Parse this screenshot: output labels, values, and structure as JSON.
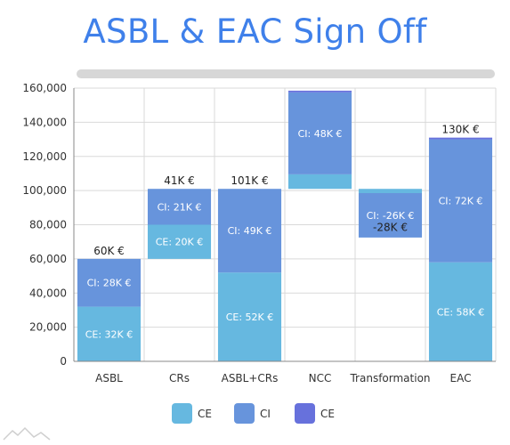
{
  "chart_data": {
    "type": "bar",
    "subtype": "stacked-waterfall",
    "title": "ASBL & EAC Sign Off",
    "xlabel": "",
    "ylabel": "",
    "ylim": [
      0,
      160000
    ],
    "yticks": [
      0,
      20000,
      40000,
      60000,
      80000,
      100000,
      120000,
      140000,
      160000
    ],
    "ytick_labels": [
      "0",
      "20,000",
      "40,000",
      "60,000",
      "80,000",
      "100,000",
      "120,000",
      "140,000",
      "160,000"
    ],
    "grid": true,
    "legend_position": "bottom",
    "categories": [
      "ASBL",
      "CRs",
      "ASBL+CRs",
      "NCC",
      "Transformation",
      "EAC"
    ],
    "bars": [
      {
        "category": "ASBL",
        "segments": [
          {
            "series": 0,
            "from": 0,
            "to": 32000,
            "label": "CE: 32K €"
          },
          {
            "series": 1,
            "from": 32000,
            "to": 60000,
            "label": "CI: 28K €"
          }
        ],
        "total_label": "60K €",
        "total_label_at": 60000
      },
      {
        "category": "CRs",
        "segments": [
          {
            "series": 0,
            "from": 60000,
            "to": 80000,
            "label": "CE: 20K €"
          },
          {
            "series": 1,
            "from": 80000,
            "to": 101000,
            "label": "CI: 21K €"
          }
        ],
        "total_label": "41K €",
        "total_label_at": 101000
      },
      {
        "category": "ASBL+CRs",
        "segments": [
          {
            "series": 0,
            "from": 0,
            "to": 52000,
            "label": "CE: 52K €"
          },
          {
            "series": 1,
            "from": 52000,
            "to": 101000,
            "label": "CI: 49K €"
          }
        ],
        "total_label": "101K €",
        "total_label_at": 101000
      },
      {
        "category": "NCC",
        "segments": [
          {
            "series": 0,
            "from": 101000,
            "to": 109500,
            "label": ""
          },
          {
            "series": 1,
            "from": 109500,
            "to": 157500,
            "label": "CI: 48K €"
          },
          {
            "series": 2,
            "from": 157500,
            "to": 158500,
            "label": ""
          }
        ],
        "total_label": "",
        "total_label_at": 158500
      },
      {
        "category": "Transformation",
        "segments": [
          {
            "series": 0,
            "from": 98500,
            "to": 101000,
            "label": ""
          },
          {
            "series": 1,
            "from": 72500,
            "to": 98500,
            "label": "CI: -26K €"
          }
        ],
        "total_label": "-28K €",
        "total_label_at": 78500,
        "total_label_inside": true
      },
      {
        "category": "EAC",
        "segments": [
          {
            "series": 0,
            "from": 0,
            "to": 58000,
            "label": "CE: 58K €"
          },
          {
            "series": 1,
            "from": 58000,
            "to": 130000,
            "label": "CI: 72K €"
          },
          {
            "series": 2,
            "from": 130000,
            "to": 131000,
            "label": ""
          }
        ],
        "total_label": "130K €",
        "total_label_at": 131000
      }
    ],
    "series": [
      {
        "name": "CE",
        "color": "#66b8e0"
      },
      {
        "name": "CI",
        "color": "#6794dc"
      },
      {
        "name": "CE",
        "color": "#6771dc"
      }
    ]
  },
  "colors": {
    "title": "#3f80ea",
    "grid": "#d9d9d9",
    "axis": "#888888",
    "scrollbar": "#d7d7d7"
  },
  "icons": {
    "watermark": "mountain-logo-icon"
  }
}
